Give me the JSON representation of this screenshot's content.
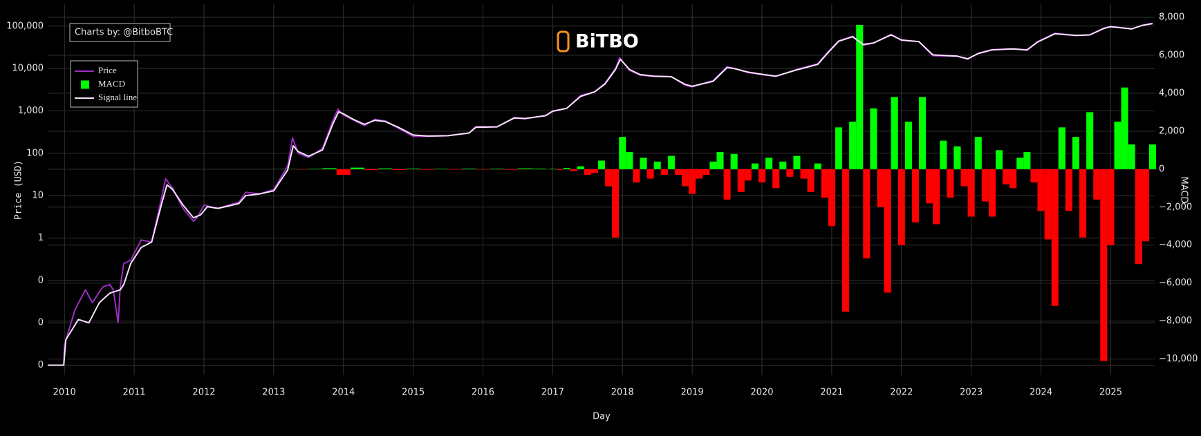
{
  "chart_data": {
    "type": "line",
    "watermark": "Charts by: @BitboBTC",
    "logo": "BiTBO",
    "xlabel": "Day",
    "ylabel": "Price (USD)",
    "y2label": "MACD",
    "ylog": true,
    "grid": true,
    "legend": "upper left",
    "xlim": [
      2009.76,
      2025.63
    ],
    "xticks": [
      2010,
      2011,
      2012,
      2013,
      2014,
      2015,
      2016,
      2017,
      2018,
      2019,
      2020,
      2021,
      2022,
      2023,
      2024,
      2025
    ],
    "ylim": [
      0.00058,
      330000
    ],
    "yticks": [
      {
        "value": 0.001,
        "label": "0"
      },
      {
        "value": 0.01,
        "label": "0"
      },
      {
        "value": 0.1,
        "label": "0"
      },
      1,
      10,
      100,
      {
        "value": 1000,
        "label": "1,000"
      },
      {
        "value": 10000,
        "label": "10,000"
      },
      {
        "value": 100000,
        "label": "100,000"
      }
    ],
    "y2lim": [
      -10850,
      8690
    ],
    "y2ticks": [
      {
        "value": -10000,
        "label": "−10,000"
      },
      {
        "value": -8000,
        "label": "−8,000"
      },
      {
        "value": -6000,
        "label": "−6,000"
      },
      {
        "value": -4000,
        "label": "−4,000"
      },
      {
        "value": -2000,
        "label": "−2,000"
      },
      0,
      {
        "value": 2000,
        "label": "2,000"
      },
      {
        "value": 4000,
        "label": "4,000"
      },
      {
        "value": 6000,
        "label": "6,000"
      },
      {
        "value": 8000,
        "label": "8,000"
      }
    ],
    "series": [
      {
        "name": "Price",
        "type": "line",
        "axis": "y",
        "color": "#9a2fc2",
        "x": [
          2009.76,
          2009.99,
          2010.0,
          2010.15,
          2010.3,
          2010.4,
          2010.55,
          2010.65,
          2010.7,
          2010.77,
          2010.8,
          2010.85,
          2010.95,
          2011.1,
          2011.25,
          2011.4,
          2011.45,
          2011.55,
          2011.7,
          2011.85,
          2011.9,
          2012.0,
          2012.2,
          2012.5,
          2012.6,
          2012.8,
          2013.0,
          2013.2,
          2013.27,
          2013.35,
          2013.5,
          2013.7,
          2013.85,
          2013.92,
          2014.0,
          2014.15,
          2014.3,
          2014.45,
          2014.6,
          2014.8,
          2015.0,
          2015.2,
          2015.5,
          2015.8,
          2015.9,
          2016.2,
          2016.45,
          2016.6,
          2016.9,
          2017.0,
          2017.2,
          2017.4,
          2017.6,
          2017.75,
          2017.9,
          2017.96,
          2018.1,
          2018.25,
          2018.45,
          2018.7,
          2018.9,
          2019.0,
          2019.3,
          2019.5,
          2019.6,
          2019.8,
          2020.0,
          2020.2,
          2020.5,
          2020.8,
          2020.95,
          2021.1,
          2021.3,
          2021.45,
          2021.6,
          2021.85,
          2022.0,
          2022.25,
          2022.45,
          2022.8,
          2022.95,
          2023.1,
          2023.3,
          2023.6,
          2023.8,
          2023.95,
          2024.2,
          2024.5,
          2024.7,
          2024.9,
          2025.0,
          2025.3,
          2025.45,
          2025.6
        ],
        "values": [
          0.001,
          0.001,
          0.003,
          0.02,
          0.06,
          0.03,
          0.07,
          0.08,
          0.06,
          0.01,
          0.07,
          0.25,
          0.3,
          0.9,
          0.8,
          10,
          25,
          15,
          5,
          2.5,
          3,
          6,
          5,
          7,
          12,
          11,
          14,
          50,
          230,
          100,
          80,
          130,
          600,
          1100,
          800,
          600,
          450,
          630,
          580,
          380,
          250,
          250,
          260,
          300,
          430,
          420,
          700,
          650,
          780,
          1000,
          1150,
          2300,
          2800,
          4500,
          10000,
          18000,
          9000,
          7000,
          6500,
          6400,
          4000,
          3700,
          5200,
          11000,
          10000,
          8000,
          7200,
          6500,
          9500,
          13000,
          25000,
          45000,
          58000,
          35000,
          40000,
          64000,
          46000,
          43000,
          20000,
          19500,
          16500,
          23000,
          28000,
          29000,
          27000,
          43000,
          68000,
          60000,
          62000,
          90000,
          98000,
          85000,
          105000,
          117000
        ]
      },
      {
        "name": "MACD",
        "type": "bar",
        "axis": "y2",
        "color": "#00ff00",
        "negative_color": "#ff0000",
        "x": [
          2010.0,
          2010.2,
          2010.4,
          2010.6,
          2010.8,
          2011.0,
          2011.2,
          2011.4,
          2011.6,
          2011.8,
          2012.0,
          2012.2,
          2012.4,
          2012.6,
          2012.8,
          2013.0,
          2013.2,
          2013.4,
          2013.6,
          2013.8,
          2014.0,
          2014.2,
          2014.4,
          2014.6,
          2014.8,
          2015.0,
          2015.2,
          2015.4,
          2015.6,
          2015.8,
          2016.0,
          2016.2,
          2016.4,
          2016.6,
          2016.8,
          2017.0,
          2017.1,
          2017.2,
          2017.3,
          2017.4,
          2017.5,
          2017.6,
          2017.7,
          2017.8,
          2017.9,
          2018.0,
          2018.1,
          2018.2,
          2018.3,
          2018.4,
          2018.5,
          2018.6,
          2018.7,
          2018.8,
          2018.9,
          2019.0,
          2019.1,
          2019.2,
          2019.3,
          2019.4,
          2019.5,
          2019.6,
          2019.7,
          2019.8,
          2019.9,
          2020.0,
          2020.1,
          2020.2,
          2020.3,
          2020.4,
          2020.5,
          2020.6,
          2020.7,
          2020.8,
          2020.9,
          2021.0,
          2021.1,
          2021.2,
          2021.3,
          2021.4,
          2021.5,
          2021.6,
          2021.7,
          2021.8,
          2021.9,
          2022.0,
          2022.1,
          2022.2,
          2022.3,
          2022.4,
          2022.5,
          2022.6,
          2022.7,
          2022.8,
          2022.9,
          2023.0,
          2023.1,
          2023.2,
          2023.3,
          2023.4,
          2023.5,
          2023.6,
          2023.7,
          2023.8,
          2023.9,
          2024.0,
          2024.1,
          2024.2,
          2024.3,
          2024.4,
          2024.5,
          2024.6,
          2024.7,
          2024.8,
          2024.9,
          2025.0,
          2025.1,
          2025.2,
          2025.3,
          2025.4,
          2025.5,
          2025.6
        ],
        "values": [
          0,
          0,
          0,
          0,
          0,
          2,
          -2,
          5,
          -5,
          3,
          -3,
          2,
          -2,
          3,
          -3,
          4,
          10,
          -15,
          20,
          50,
          -300,
          80,
          -50,
          40,
          -40,
          30,
          -30,
          20,
          -20,
          30,
          -20,
          25,
          -30,
          40,
          30,
          20,
          -40,
          60,
          -100,
          150,
          -300,
          -200,
          450,
          -900,
          -3600,
          1700,
          900,
          -700,
          600,
          -500,
          400,
          -300,
          700,
          -300,
          -900,
          -1300,
          -500,
          -300,
          400,
          900,
          -1600,
          800,
          -1200,
          -600,
          300,
          -700,
          600,
          -1000,
          400,
          -400,
          700,
          -500,
          -1200,
          300,
          -1500,
          -3000,
          2200,
          -7500,
          2500,
          7600,
          -4700,
          3200,
          -2000,
          -6500,
          3800,
          -4000,
          2500,
          -2800,
          3800,
          -1800,
          -2900,
          1500,
          -1500,
          1200,
          -900,
          -2500,
          1700,
          -1700,
          -2500,
          1000,
          -800,
          -1000,
          600,
          900,
          -700,
          -2200,
          -3700,
          -7200,
          2200,
          -2200,
          1700,
          -3600,
          3000,
          -1600,
          -10100,
          -4000,
          2500,
          4300,
          1300,
          -5000,
          -3800,
          1300
        ]
      },
      {
        "name": "Signal line",
        "type": "line",
        "axis": "y",
        "color": "#fbe3ff",
        "x": [
          2009.76,
          2009.99,
          2010.02,
          2010.2,
          2010.35,
          2010.5,
          2010.65,
          2010.8,
          2010.85,
          2010.95,
          2011.1,
          2011.25,
          2011.4,
          2011.47,
          2011.55,
          2011.7,
          2011.85,
          2011.95,
          2012.05,
          2012.2,
          2012.5,
          2012.6,
          2012.8,
          2013.0,
          2013.2,
          2013.28,
          2013.35,
          2013.5,
          2013.7,
          2013.85,
          2013.93,
          2014.0,
          2014.15,
          2014.3,
          2014.45,
          2014.6,
          2014.8,
          2015.0,
          2015.2,
          2015.5,
          2015.8,
          2015.9,
          2016.2,
          2016.45,
          2016.6,
          2016.9,
          2017.0,
          2017.2,
          2017.4,
          2017.6,
          2017.75,
          2017.9,
          2017.97,
          2018.1,
          2018.25,
          2018.45,
          2018.7,
          2018.9,
          2019.0,
          2019.3,
          2019.5,
          2019.6,
          2019.8,
          2020.0,
          2020.2,
          2020.5,
          2020.8,
          2020.95,
          2021.1,
          2021.3,
          2021.45,
          2021.6,
          2021.85,
          2022.0,
          2022.25,
          2022.45,
          2022.8,
          2022.95,
          2023.1,
          2023.3,
          2023.6,
          2023.8,
          2023.95,
          2024.2,
          2024.5,
          2024.7,
          2024.9,
          2025.0,
          2025.3,
          2025.45,
          2025.6
        ],
        "values": [
          0.001,
          0.001,
          0.004,
          0.012,
          0.01,
          0.03,
          0.05,
          0.06,
          0.08,
          0.25,
          0.6,
          0.8,
          7,
          18,
          14,
          6,
          3,
          3.5,
          5.5,
          5,
          6.5,
          10,
          11,
          13,
          40,
          150,
          110,
          85,
          120,
          500,
          950,
          850,
          620,
          480,
          600,
          560,
          400,
          270,
          255,
          260,
          300,
          410,
          420,
          680,
          660,
          770,
          980,
          1150,
          2200,
          2800,
          4300,
          9500,
          16500,
          9500,
          7200,
          6600,
          6400,
          4200,
          3800,
          5000,
          10500,
          10000,
          8200,
          7300,
          6600,
          9300,
          12500,
          24000,
          44000,
          56000,
          37000,
          40000,
          62000,
          47000,
          43000,
          21000,
          19500,
          17000,
          22500,
          27500,
          29000,
          27500,
          42000,
          66000,
          60500,
          62000,
          88000,
          97000,
          86000,
          104000,
          115000
        ]
      }
    ]
  }
}
